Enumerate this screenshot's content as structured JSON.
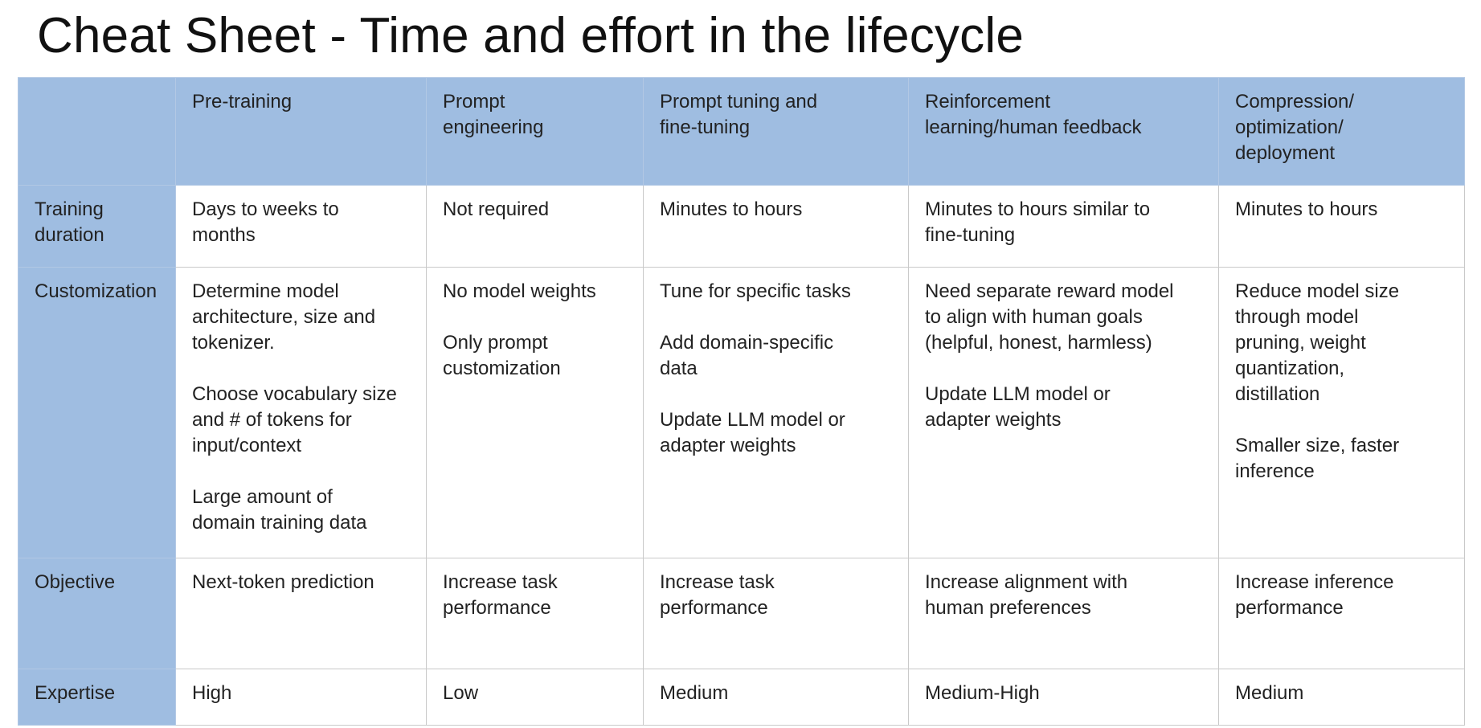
{
  "title": "Cheat Sheet - Time and effort in the lifecycle",
  "colors": {
    "header_fill": "#9fbde1",
    "grid_line": "#c9c9c9",
    "text": "#222222"
  },
  "columns": [
    {
      "lines": []
    },
    {
      "lines": [
        "Pre-training"
      ]
    },
    {
      "lines": [
        "Prompt",
        "engineering"
      ]
    },
    {
      "lines": [
        "Prompt tuning and",
        "fine-tuning"
      ]
    },
    {
      "lines": [
        "Reinforcement",
        "learning/human feedback"
      ]
    },
    {
      "lines": [
        "Compression/",
        "optimization/",
        "deployment"
      ]
    }
  ],
  "rows": [
    {
      "label": [
        "Training",
        "duration"
      ],
      "cells": [
        [
          [
            "Days to weeks to",
            "months"
          ]
        ],
        [
          [
            "Not required"
          ]
        ],
        [
          [
            "Minutes to hours"
          ]
        ],
        [
          [
            "Minutes to hours similar to",
            "fine-tuning"
          ]
        ],
        [
          [
            "Minutes to hours"
          ]
        ]
      ]
    },
    {
      "label": [
        "Customization"
      ],
      "cells": [
        [
          [
            "Determine model",
            "architecture, size and",
            "tokenizer."
          ],
          [
            "Choose vocabulary size",
            "and # of tokens for",
            "input/context"
          ],
          [
            "Large amount of",
            "domain training data"
          ]
        ],
        [
          [
            "No model weights"
          ],
          [
            "Only prompt",
            "customization"
          ]
        ],
        [
          [
            "Tune for specific tasks"
          ],
          [
            "Add domain-specific",
            "data"
          ],
          [
            "Update LLM model or",
            "adapter weights"
          ]
        ],
        [
          [
            "Need separate reward model",
            "to align with human goals",
            "(helpful, honest, harmless)"
          ],
          [
            "Update LLM model or",
            "adapter weights"
          ]
        ],
        [
          [
            "Reduce model size",
            "through model",
            "pruning, weight",
            "quantization,",
            "distillation"
          ],
          [
            "Smaller size, faster",
            "inference"
          ]
        ]
      ]
    },
    {
      "label": [
        "Objective"
      ],
      "cells": [
        [
          [
            "Next-token prediction"
          ]
        ],
        [
          [
            "Increase task",
            "performance"
          ]
        ],
        [
          [
            "Increase task",
            "performance"
          ]
        ],
        [
          [
            "Increase alignment with",
            "human preferences"
          ]
        ],
        [
          [
            "Increase inference",
            "performance"
          ]
        ]
      ]
    },
    {
      "label": [
        "Expertise"
      ],
      "cells": [
        [
          [
            "High"
          ]
        ],
        [
          [
            "Low"
          ]
        ],
        [
          [
            "Medium"
          ]
        ],
        [
          [
            "Medium-High"
          ]
        ],
        [
          [
            "Medium"
          ]
        ]
      ]
    }
  ]
}
